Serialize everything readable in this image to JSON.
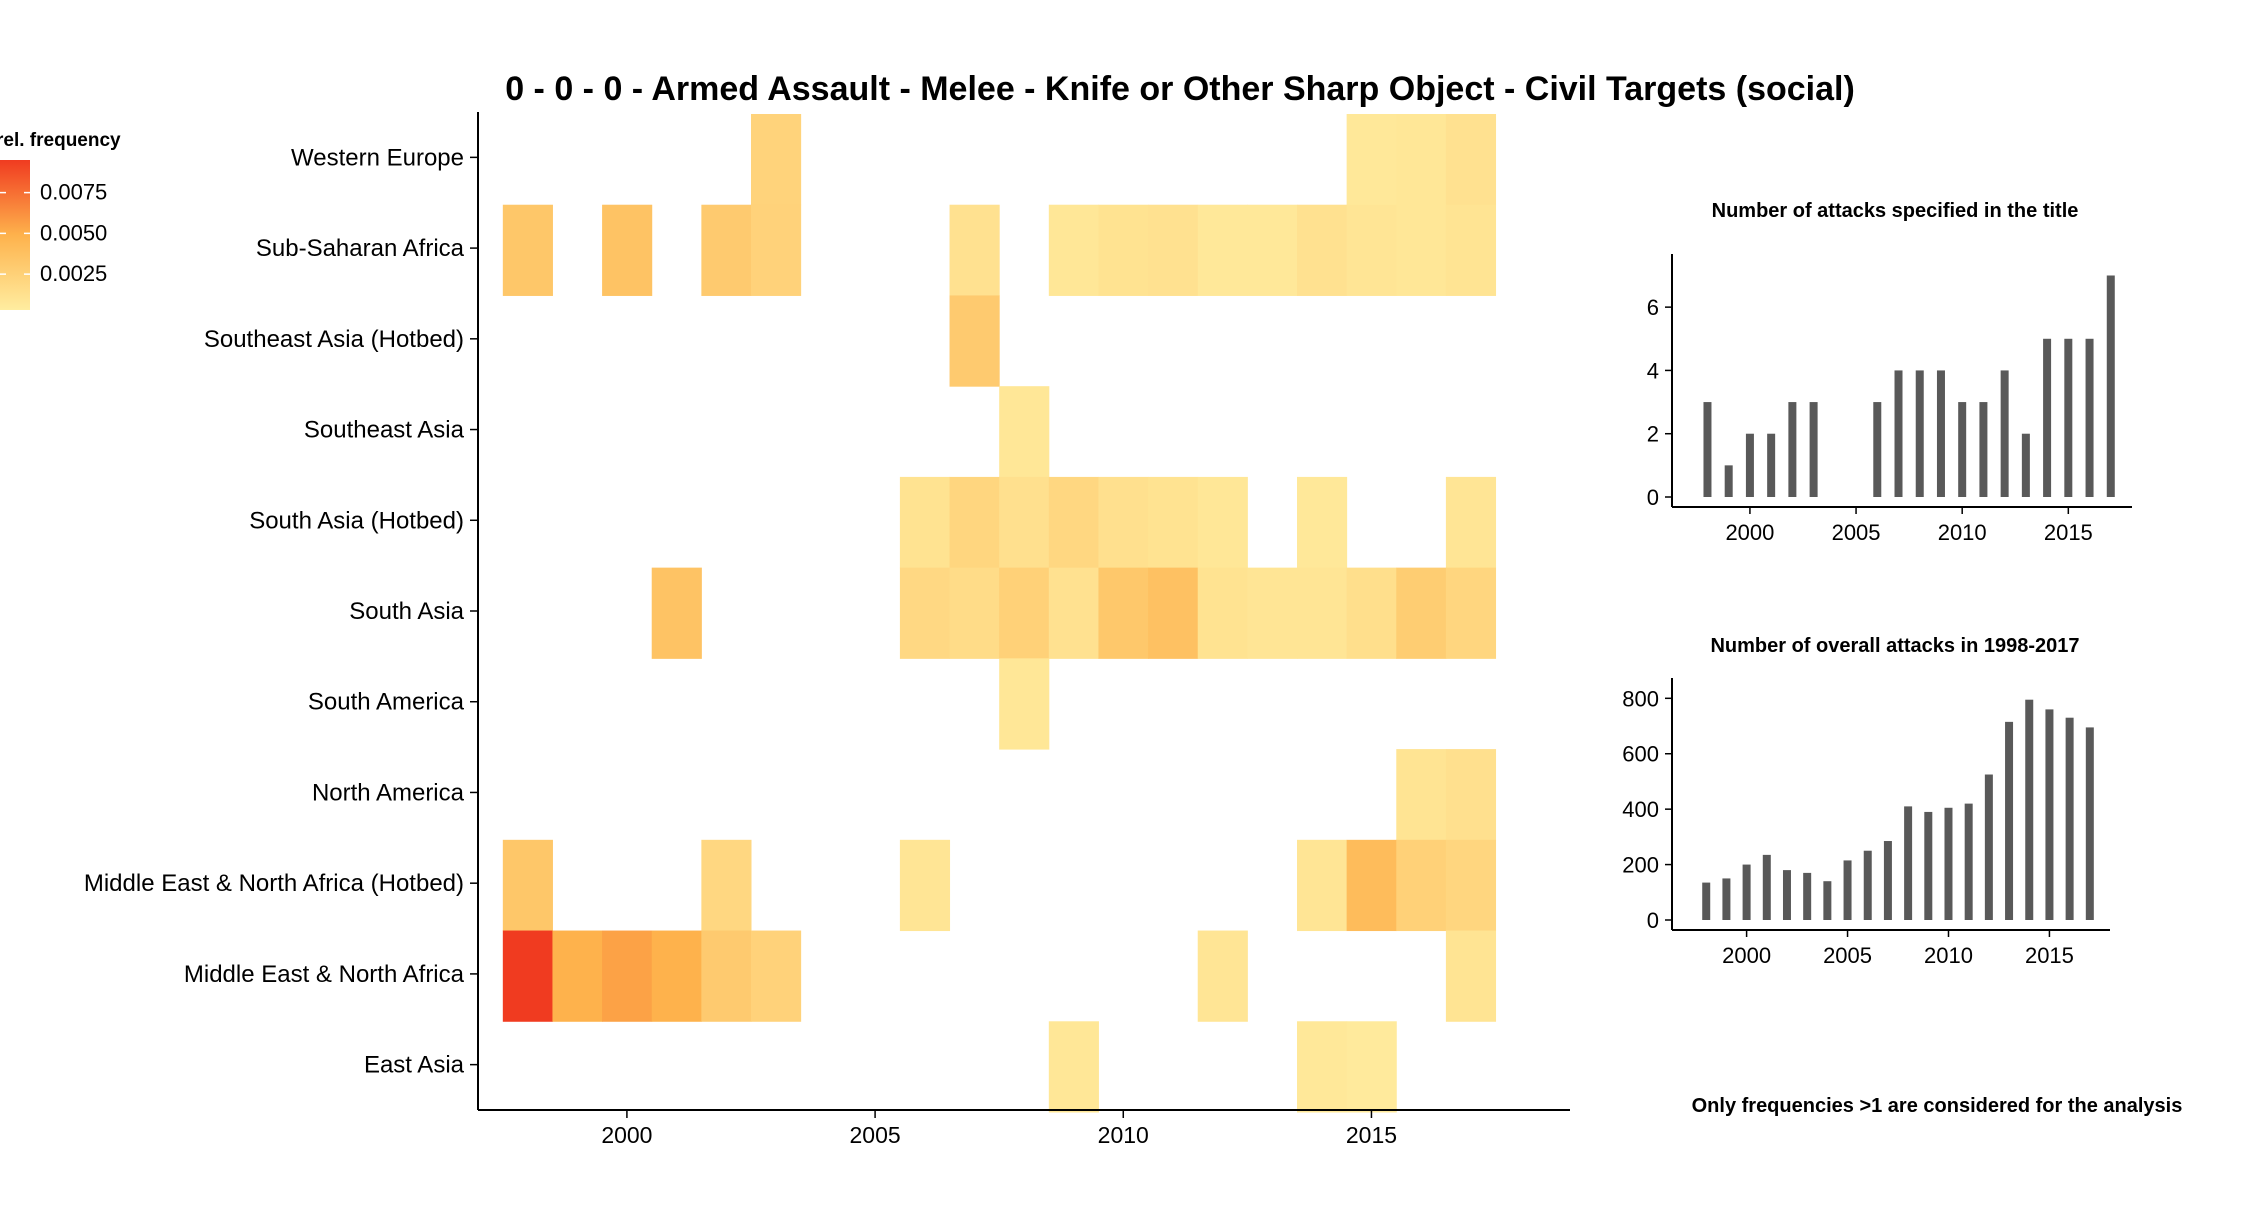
{
  "title": "0 - 0 - 0 - Armed Assault - Melee - Knife or Other Sharp Object - Civil Targets (social)",
  "footnote": "Only frequencies >1 are considered for the analysis",
  "colors": {
    "scale_low": "#FFEDA0",
    "scale_mid": "#FEB24C",
    "scale_high": "#F03B20",
    "bar": "#595959",
    "axis": "#000000"
  },
  "chart_data": [
    {
      "type": "heatmap",
      "title": "0 - 0 - 0 - Armed Assault - Melee - Knife or Other Sharp Object - Civil Targets (social)",
      "xlabel": "",
      "ylabel": "",
      "x_ticks": [
        2000,
        2005,
        2010,
        2015
      ],
      "xlim": [
        1997,
        2019
      ],
      "legend": {
        "title": "rel. frequency",
        "ticks": [
          "0.0075",
          "0.0050",
          "0.0025"
        ],
        "tick_values": [
          0.0075,
          0.005,
          0.0025
        ],
        "min": 0.0003,
        "max": 0.0095,
        "placement": "left"
      },
      "rows": [
        {
          "name": "Western Europe",
          "cells": [
            [
              2003,
              0.0023
            ],
            [
              2015,
              0.0007
            ],
            [
              2016,
              0.0008
            ],
            [
              2017,
              0.0012
            ]
          ]
        },
        {
          "name": "Sub-Saharan Africa",
          "cells": [
            [
              1998,
              0.0033
            ],
            [
              2000,
              0.0036
            ],
            [
              2002,
              0.003
            ],
            [
              2003,
              0.0024
            ],
            [
              2007,
              0.0012
            ],
            [
              2009,
              0.0008
            ],
            [
              2010,
              0.0011
            ],
            [
              2011,
              0.0012
            ],
            [
              2012,
              0.0007
            ],
            [
              2013,
              0.0007
            ],
            [
              2014,
              0.0012
            ],
            [
              2015,
              0.0009
            ],
            [
              2016,
              0.0008
            ],
            [
              2017,
              0.001
            ]
          ]
        },
        {
          "name": "Southeast Asia (Hotbed)",
          "cells": [
            [
              2007,
              0.003
            ]
          ]
        },
        {
          "name": "Southeast Asia",
          "cells": [
            [
              2008,
              0.0008
            ]
          ]
        },
        {
          "name": "South Asia (Hotbed)",
          "cells": [
            [
              2006,
              0.0011
            ],
            [
              2007,
              0.0021
            ],
            [
              2008,
              0.0013
            ],
            [
              2009,
              0.002
            ],
            [
              2010,
              0.0013
            ],
            [
              2011,
              0.0011
            ],
            [
              2012,
              0.0008
            ],
            [
              2014,
              0.0007
            ],
            [
              2017,
              0.0009
            ]
          ]
        },
        {
          "name": "South Asia",
          "cells": [
            [
              2001,
              0.0036
            ],
            [
              2006,
              0.0019
            ],
            [
              2007,
              0.0016
            ],
            [
              2008,
              0.0025
            ],
            [
              2009,
              0.0012
            ],
            [
              2010,
              0.0032
            ],
            [
              2011,
              0.0037
            ],
            [
              2012,
              0.0011
            ],
            [
              2013,
              0.0009
            ],
            [
              2014,
              0.0009
            ],
            [
              2015,
              0.0014
            ],
            [
              2016,
              0.0028
            ],
            [
              2017,
              0.0021
            ]
          ]
        },
        {
          "name": "South America",
          "cells": [
            [
              2008,
              0.0008
            ]
          ]
        },
        {
          "name": "North America",
          "cells": [
            [
              2016,
              0.001
            ],
            [
              2017,
              0.0013
            ]
          ]
        },
        {
          "name": "Middle East & North Africa (Hotbed)",
          "cells": [
            [
              1998,
              0.0033
            ],
            [
              2002,
              0.002
            ],
            [
              2006,
              0.0009
            ],
            [
              2014,
              0.0009
            ],
            [
              2015,
              0.0041
            ],
            [
              2016,
              0.0025
            ],
            [
              2017,
              0.0021
            ]
          ]
        },
        {
          "name": "Middle East & North Africa",
          "cells": [
            [
              1998,
              0.0095
            ],
            [
              1999,
              0.0049
            ],
            [
              2000,
              0.0055
            ],
            [
              2001,
              0.0049
            ],
            [
              2002,
              0.003
            ],
            [
              2003,
              0.0024
            ],
            [
              2012,
              0.0009
            ],
            [
              2017,
              0.001
            ]
          ]
        },
        {
          "name": "East Asia",
          "cells": [
            [
              2009,
              0.0008
            ],
            [
              2014,
              0.0007
            ],
            [
              2015,
              0.0005
            ]
          ]
        }
      ]
    },
    {
      "type": "bar",
      "title": "Number of attacks specified in the title",
      "xlabel": "",
      "ylabel": "",
      "x": [
        1998,
        1999,
        2000,
        2001,
        2002,
        2003,
        2004,
        2005,
        2006,
        2007,
        2008,
        2009,
        2010,
        2011,
        2012,
        2013,
        2014,
        2015,
        2016,
        2017
      ],
      "values": [
        3,
        1,
        2,
        2,
        3,
        3,
        0,
        0,
        3,
        4,
        4,
        4,
        3,
        3,
        4,
        2,
        5,
        5,
        5,
        7
      ],
      "x_ticks": [
        2000,
        2005,
        2010,
        2015
      ],
      "y_ticks": [
        0,
        2,
        4,
        6
      ],
      "xlim": [
        1996.8,
        2018
      ],
      "ylim": [
        0,
        7.3
      ]
    },
    {
      "type": "bar",
      "title": "Number of overall attacks in 1998-2017",
      "xlabel": "",
      "ylabel": "",
      "x": [
        1998,
        1999,
        2000,
        2001,
        2002,
        2003,
        2004,
        2005,
        2006,
        2007,
        2008,
        2009,
        2010,
        2011,
        2012,
        2013,
        2014,
        2015,
        2016,
        2017
      ],
      "values": [
        135,
        150,
        200,
        235,
        180,
        170,
        140,
        215,
        250,
        285,
        410,
        390,
        405,
        420,
        525,
        715,
        795,
        760,
        730,
        695
      ],
      "x_ticks": [
        2000,
        2005,
        2010,
        2015
      ],
      "y_ticks": [
        0,
        200,
        400,
        600,
        800
      ],
      "xlim": [
        1996.8,
        2018
      ],
      "ylim": [
        0,
        830
      ]
    }
  ]
}
